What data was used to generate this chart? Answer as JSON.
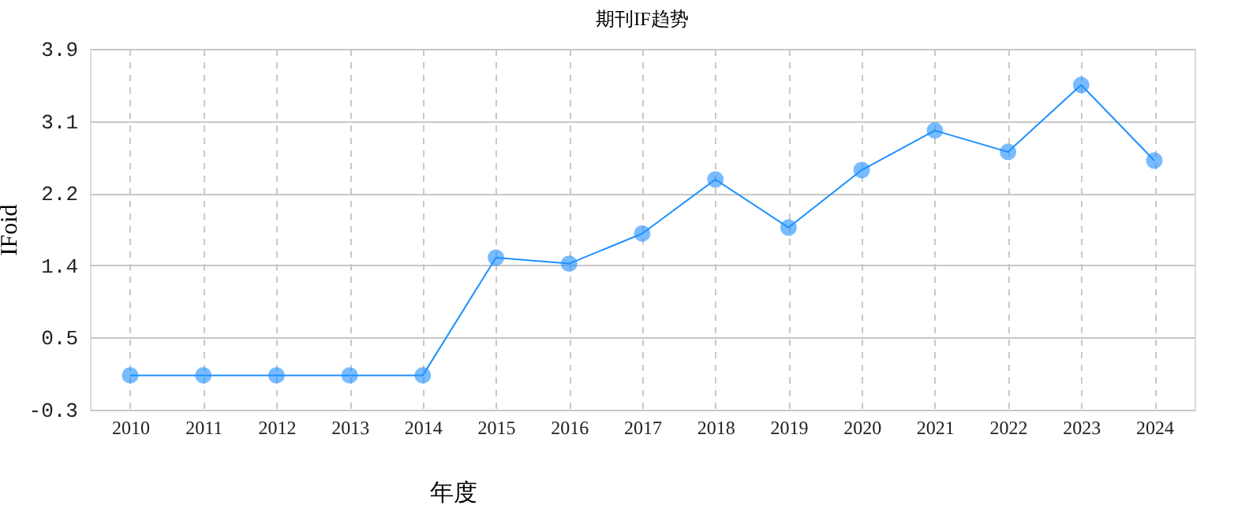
{
  "chart_data": {
    "type": "line",
    "title": "期刊IF趋势",
    "xlabel": "年度",
    "ylabel": "IFoid",
    "categories": [
      "2010",
      "2011",
      "2012",
      "2013",
      "2014",
      "2015",
      "2016",
      "2017",
      "2018",
      "2019",
      "2020",
      "2021",
      "2022",
      "2023",
      "2024"
    ],
    "series": [
      {
        "color": "#1e90ff",
        "values": [
          0.1,
          0.1,
          0.1,
          0.1,
          0.1,
          1.47,
          1.4,
          1.75,
          2.38,
          1.82,
          2.49,
          2.95,
          2.7,
          3.48,
          2.6
        ]
      }
    ],
    "ylim": [
      -0.3,
      3.9
    ],
    "yticks": [
      -0.3,
      {
        "value": 0.54,
        "label": "0.5"
      },
      {
        "value": 1.38,
        "label": "1.4"
      },
      {
        "value": 2.22,
        "label": "2.2"
      },
      {
        "value": 3.06,
        "label": "3.1"
      },
      3.9
    ],
    "grid": true,
    "marker": "circle",
    "line_style": "solid",
    "legend": false
  }
}
